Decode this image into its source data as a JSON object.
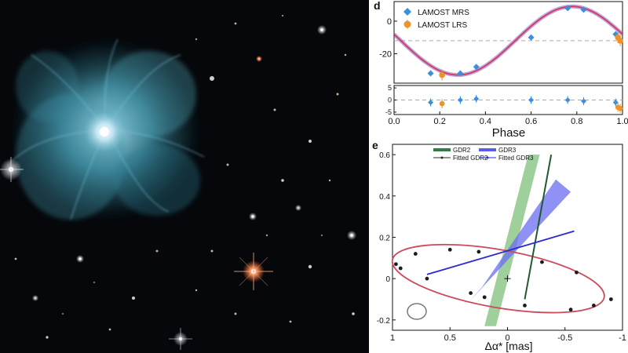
{
  "photo": {
    "subject": "nebula",
    "colors": {
      "space": "#05070a",
      "nebula": "#5fb3c8",
      "core": "#e8f6ff"
    }
  },
  "chart_data": [
    {
      "panel_label": "d",
      "type": "scatter",
      "xlabel": "Phase",
      "ylabel": "",
      "xlim": [
        0,
        1
      ],
      "ylim": [
        -38,
        12
      ],
      "xticks": [
        "0.0",
        "0.2",
        "0.4",
        "0.6",
        "0.8",
        "1.0"
      ],
      "yticks": [
        "0",
        "-20"
      ],
      "legend_position": "top-left",
      "series": [
        {
          "name": "LAMOST MRS",
          "color": "#3b8fe0",
          "points": [
            [
              0.16,
              -32
            ],
            [
              0.29,
              -32
            ],
            [
              0.36,
              -28
            ],
            [
              0.6,
              -10
            ],
            [
              0.76,
              8
            ],
            [
              0.83,
              7
            ],
            [
              0.97,
              -8
            ]
          ]
        },
        {
          "name": "LAMOST LRS",
          "color": "#f0922b",
          "points": [
            [
              0.21,
              -33
            ],
            [
              0.98,
              -10
            ],
            [
              0.99,
              -12
            ]
          ]
        }
      ],
      "fit": {
        "color": "#d23c5a",
        "type": "sinusoid"
      },
      "residuals": {
        "ylim": [
          -6,
          6
        ],
        "yticks": [
          "5",
          "0",
          "-5"
        ],
        "mrs": [
          [
            0.16,
            -1
          ],
          [
            0.29,
            0
          ],
          [
            0.36,
            0.5
          ],
          [
            0.6,
            0
          ],
          [
            0.76,
            0
          ],
          [
            0.83,
            -0.5
          ],
          [
            0.97,
            -1
          ]
        ],
        "lrs": [
          [
            0.21,
            -1.5
          ],
          [
            0.98,
            -3
          ],
          [
            0.99,
            -3.5
          ]
        ]
      }
    },
    {
      "panel_label": "e",
      "type": "scatter",
      "xlabel": "Δα* [mas]",
      "ylabel": "",
      "xlim": [
        1,
        -1
      ],
      "ylim": [
        -0.25,
        0.65
      ],
      "xticks": [
        "1",
        "0.5",
        "0",
        "-0.5",
        "-1"
      ],
      "yticks": [
        "0.6",
        "0.4",
        "0.2",
        "0",
        "-0.2"
      ],
      "legend_position": "top-center",
      "legend": [
        {
          "name": "GDR2",
          "color": "#2f7d45"
        },
        {
          "name": "GDR3",
          "color": "#5a5cf0"
        },
        {
          "name": "Fitted GDR2",
          "color": "#2a2a2a"
        },
        {
          "name": "Fitted GDR3",
          "color": "#2a2acf"
        }
      ],
      "orbit": {
        "color": "#cc4a5a",
        "points_top": [
          [
            0.97,
            0.07
          ],
          [
            0.8,
            0.12
          ],
          [
            0.5,
            0.14
          ],
          [
            0.25,
            0.13
          ],
          [
            -0.3,
            0.08
          ],
          [
            -0.6,
            0.03
          ]
        ],
        "points_bottom": [
          [
            0.93,
            0.05
          ],
          [
            0.7,
            0.0
          ],
          [
            0.32,
            -0.07
          ],
          [
            0.2,
            -0.09
          ],
          [
            -0.15,
            -0.13
          ],
          [
            -0.55,
            -0.15
          ],
          [
            -0.75,
            -0.13
          ],
          [
            -0.9,
            -0.1
          ]
        ]
      },
      "center_marker": [
        0,
        0
      ]
    }
  ]
}
